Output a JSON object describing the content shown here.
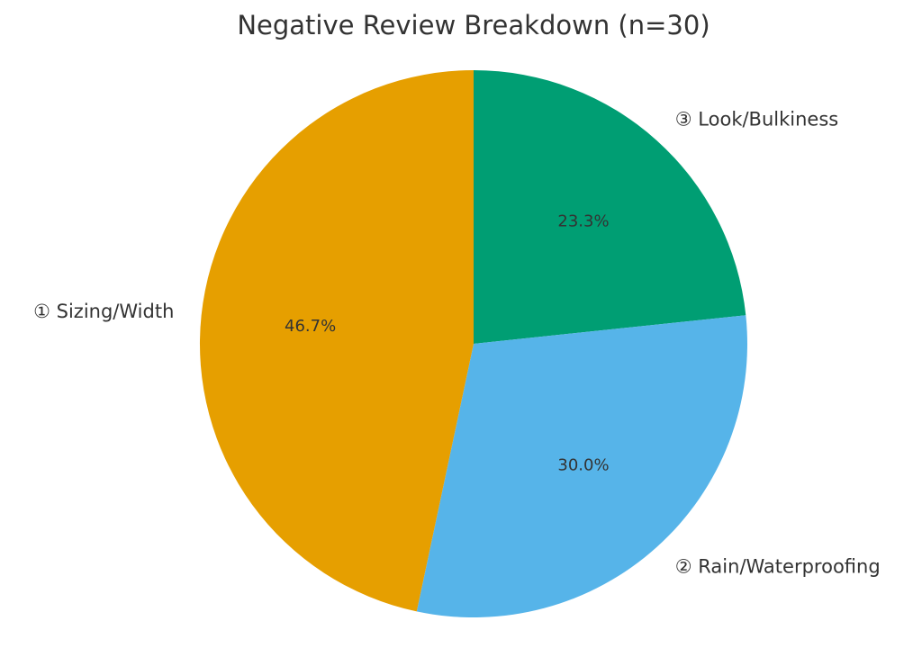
{
  "chart_data": {
    "type": "pie",
    "title": "Negative Review Breakdown (n=30)",
    "start_angle_deg": 90,
    "direction": "clockwise",
    "slices": [
      {
        "label": "③ Look/Bulkiness",
        "value": 7,
        "percent_label": "23.3%",
        "color": "#009E73"
      },
      {
        "label": "② Rain/Waterproofing",
        "value": 9,
        "percent_label": "30.0%",
        "color": "#56B4E9"
      },
      {
        "label": "① Sizing/Width",
        "value": 14,
        "percent_label": "46.7%",
        "color": "#E69F00"
      }
    ]
  }
}
